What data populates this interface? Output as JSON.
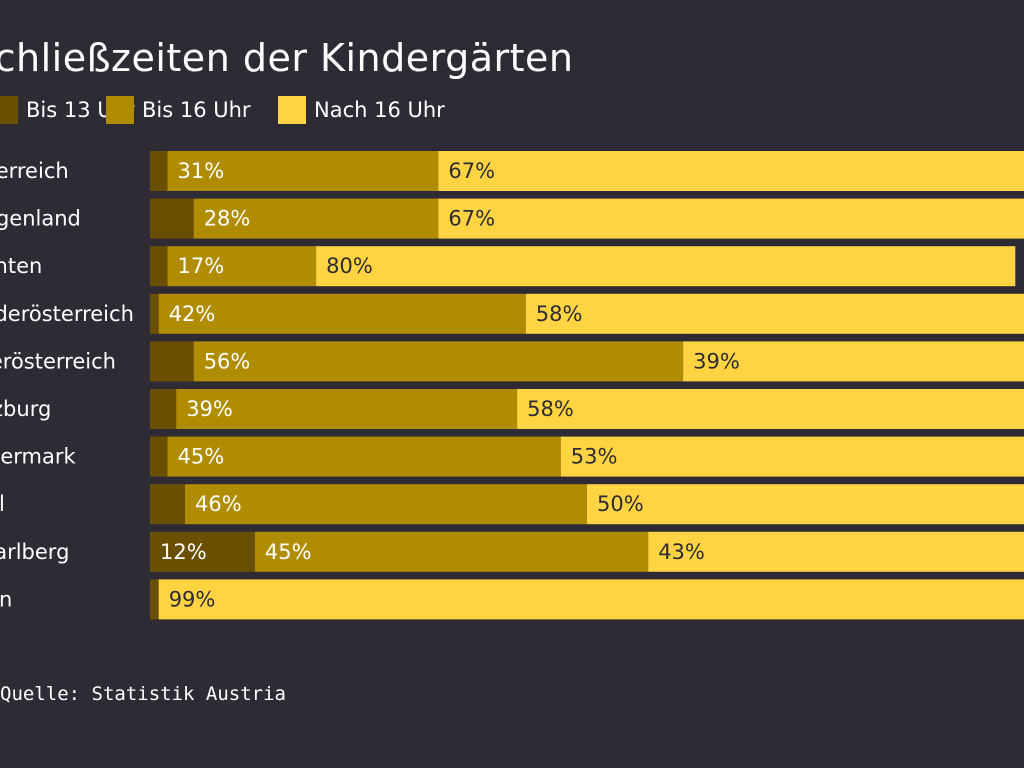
{
  "chart_data": {
    "type": "bar",
    "orientation": "horizontal",
    "stacked": true,
    "title": "Schließzeiten der Kindergärten",
    "source": "Quelle: Statistik Austria",
    "categories": [
      "Österreich",
      "Burgenland",
      "Kärnten",
      "Niederösterreich",
      "Oberösterreich",
      "Salzburg",
      "Steiermark",
      "Tirol",
      "Vorarlberg",
      "Wien"
    ],
    "series": [
      {
        "name": "Bis 13 Uhr",
        "color": "#6b4f00",
        "values": [
          2,
          5,
          2,
          1,
          5,
          3,
          2,
          4,
          12,
          1
        ],
        "labels": [
          "",
          "",
          "",
          "",
          "",
          "",
          "",
          "",
          "12%",
          ""
        ]
      },
      {
        "name": "Bis 16 Uhr",
        "color": "#b08c00",
        "values": [
          31,
          28,
          17,
          42,
          56,
          39,
          45,
          46,
          45,
          0
        ],
        "labels": [
          "31%",
          "28%",
          "17%",
          "42%",
          "56%",
          "39%",
          "45%",
          "46%",
          "45%",
          ""
        ]
      },
      {
        "name": "Nach 16 Uhr",
        "color": "#ffd442",
        "values": [
          67,
          67,
          80,
          58,
          39,
          58,
          53,
          50,
          43,
          99
        ],
        "labels": [
          "67%",
          "67%",
          "80%",
          "58%",
          "39%",
          "58%",
          "53%",
          "50%",
          "43%",
          "99%"
        ]
      }
    ],
    "xlim": [
      0,
      100
    ],
    "grid": false,
    "legend_position": "top"
  }
}
